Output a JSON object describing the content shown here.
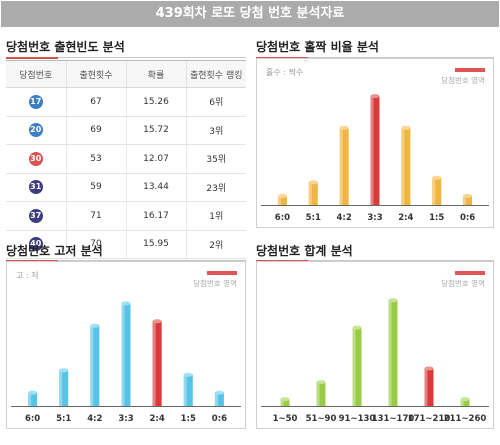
{
  "header": {
    "title": "439회차 로또 당첨 번호 분석자료"
  },
  "freq_table": {
    "title": "당첨번호 출현빈도 분석",
    "columns": [
      "당첨번호",
      "출현횟수",
      "확률",
      "출현횟수 랭킹"
    ],
    "rows": [
      {
        "number": "17",
        "count": "67",
        "prob": "15.26",
        "rank": "6위",
        "color": "#3b7fc4"
      },
      {
        "number": "20",
        "count": "69",
        "prob": "15.72",
        "rank": "3위",
        "color": "#3b7fc4"
      },
      {
        "number": "30",
        "count": "53",
        "prob": "12.07",
        "rank": "35위",
        "color": "#d9534f"
      },
      {
        "number": "31",
        "count": "59",
        "prob": "13.44",
        "rank": "23위",
        "color": "#3d3d80"
      },
      {
        "number": "37",
        "count": "71",
        "prob": "16.17",
        "rank": "1위",
        "color": "#3d3d80"
      },
      {
        "number": "40",
        "count": "70",
        "prob": "15.95",
        "rank": "2위",
        "color": "#3d3d80"
      }
    ]
  },
  "chart_data": [
    {
      "id": "oddeven",
      "type": "bar",
      "title": "당첨번호 홀짝 비율 분석",
      "axis_note": "홀수 : 짝수",
      "legend": "당첨번호 영역",
      "categories": [
        "6:0",
        "5:1",
        "4:2",
        "3:3",
        "2:4",
        "1:5",
        "0:6"
      ],
      "values": [
        2,
        5,
        17,
        24,
        17,
        6,
        2
      ],
      "highlight_index": 3,
      "bar_color": "#f0b440",
      "highlight_color": "#d93a3a",
      "ylim": [
        0,
        26
      ]
    },
    {
      "id": "highlow",
      "type": "bar",
      "title": "당첨번호 고저 분석",
      "axis_note": "고 : 저",
      "legend": "당첨번호 영역",
      "categories": [
        "6:0",
        "5:1",
        "4:2",
        "3:3",
        "2:4",
        "1:5",
        "0:6"
      ],
      "values": [
        3,
        8,
        18,
        23,
        19,
        7,
        3
      ],
      "highlight_index": 4,
      "bar_color": "#56c4e8",
      "highlight_color": "#d93a3a",
      "ylim": [
        0,
        26
      ]
    },
    {
      "id": "sum",
      "type": "bar",
      "title": "당첨번호 합계 분석",
      "axis_note": "",
      "legend": "당첨번호 영역",
      "categories": [
        "1~50",
        "51~90",
        "91~130",
        "131~170",
        "171~210",
        "211~260"
      ],
      "values": [
        2,
        7,
        23,
        31,
        11,
        2
      ],
      "highlight_index": 4,
      "bar_color": "#99cc44",
      "highlight_color": "#d93a3a",
      "ylim": [
        0,
        34
      ]
    }
  ]
}
